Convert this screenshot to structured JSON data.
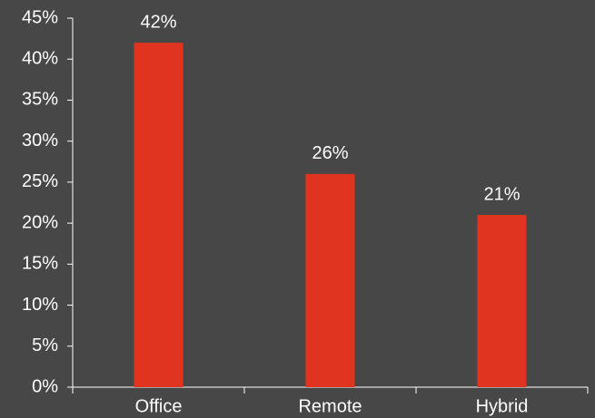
{
  "chart_data": {
    "type": "bar",
    "categories": [
      "Office",
      "Remote",
      "Hybrid"
    ],
    "values": [
      42,
      26,
      21
    ],
    "value_labels": [
      "42%",
      "26%",
      "21%"
    ],
    "color": "#e03420",
    "ylim": [
      0,
      45
    ],
    "yticks": [
      {
        "value": 0,
        "label": "0%"
      },
      {
        "value": 5,
        "label": "5%"
      },
      {
        "value": 10,
        "label": "10%"
      },
      {
        "value": 15,
        "label": "15%"
      },
      {
        "value": 20,
        "label": "20%"
      },
      {
        "value": 25,
        "label": "25%"
      },
      {
        "value": 30,
        "label": "30%"
      },
      {
        "value": 35,
        "label": "35%"
      },
      {
        "value": 40,
        "label": "40%"
      },
      {
        "value": 45,
        "label": "45%"
      }
    ],
    "grid": false
  }
}
